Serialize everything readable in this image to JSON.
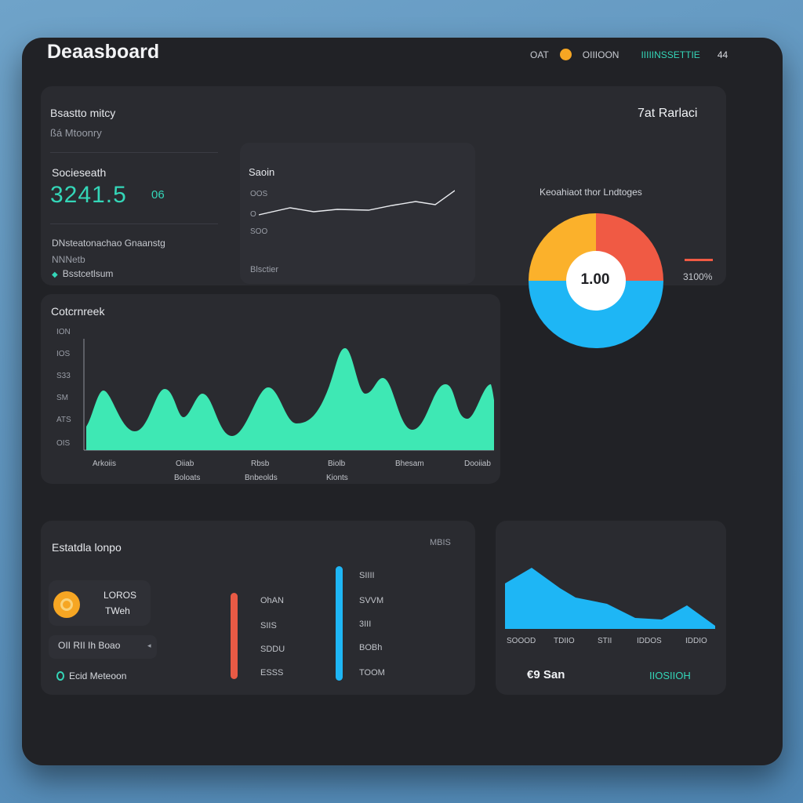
{
  "title": "Deaasboard",
  "topnav": {
    "item1": "OAT",
    "item2": "OIIIOON",
    "item3": "IIIIINSSETTIE",
    "item4": "44"
  },
  "summary": {
    "heading": "Bsastto mitcy",
    "subheading": "ßá Mtoonry",
    "metric_label": "Socieseath",
    "metric_value": "3241.5",
    "metric_suffix": "06",
    "footer_line1": "DNsteatonachao Gnaanstg",
    "footer_line2": "NNNetb",
    "footer_line3": "Bsstcetlsum"
  },
  "line_chart": {
    "title": "Saoin",
    "y_labels": [
      "OOS",
      "O",
      "SOO"
    ],
    "footer": "Blsctier"
  },
  "right_panel": {
    "heading": "7at Rarlaci",
    "pie_title": "Keoahiaot thor Lndtoges",
    "pie_center": "1.00",
    "legend_value": "3100%"
  },
  "area_chart": {
    "title": "Cotcrnreek",
    "y_labels": [
      "ION",
      "IOS",
      "S33",
      "SM",
      "ATS",
      "OIS"
    ],
    "x_labels": [
      "Arkoiis",
      "Oiiab",
      "Rbsb",
      "Biolb",
      "Bhesam",
      "Dooiiab"
    ],
    "x_sublabels": [
      "Boloats",
      "Bnbeolds",
      "Kionts"
    ]
  },
  "bottom_left": {
    "title": "Estatdla lonpo",
    "badge": "MBIS",
    "coin_line1": "LOROS",
    "coin_line2": "TWeh",
    "row_label": "OII RII Ih Boao",
    "status_label": "Ecid Meteoon",
    "mid_labels": [
      "OhAN",
      "SIIS",
      "SDDU",
      "ESSS"
    ],
    "right_labels": [
      "SIIII",
      "SVVM",
      "3III",
      "BOBh",
      "TOOM"
    ]
  },
  "bottom_right": {
    "x_labels": [
      "SOOOD",
      "TDIIO",
      "STII",
      "IDDOS",
      "IDDIO"
    ],
    "footer_left": "€9 San",
    "footer_right": "IIOSIIOH"
  },
  "colors": {
    "accent_teal": "#34d6b8",
    "area_green": "#3ee8b4",
    "pie_orange": "#fbb12b",
    "pie_red": "#f05a44",
    "pie_blue": "#1eb6f5",
    "bar_red": "#e95a45",
    "bar_blue": "#1eb6f5"
  }
}
